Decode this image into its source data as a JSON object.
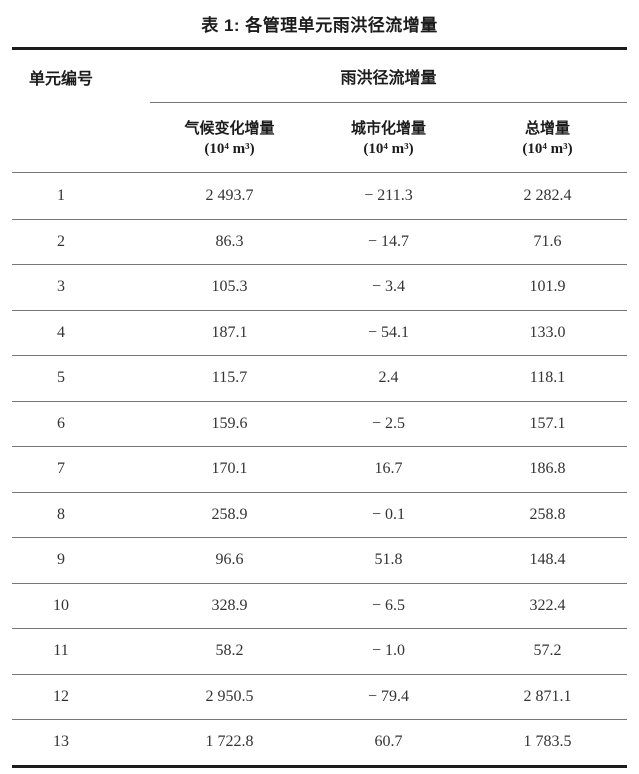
{
  "title": "表 1: 各管理单元雨洪径流增量",
  "table": {
    "col1_header": "单元编号",
    "group_header": "雨洪径流增量",
    "sub_headers": [
      {
        "name": "气候变化增量",
        "unit": "(10⁴ m³)"
      },
      {
        "name": "城市化增量",
        "unit": "(10⁴ m³)"
      },
      {
        "name": "总增量",
        "unit": "(10⁴ m³)"
      }
    ],
    "rows": [
      {
        "unit_no": "1",
        "climate": "2 493.7",
        "urbanization": "− 211.3",
        "total": "2 282.4"
      },
      {
        "unit_no": "2",
        "climate": "86.3",
        "urbanization": "− 14.7",
        "total": "71.6"
      },
      {
        "unit_no": "3",
        "climate": "105.3",
        "urbanization": "− 3.4",
        "total": "101.9"
      },
      {
        "unit_no": "4",
        "climate": "187.1",
        "urbanization": "− 54.1",
        "total": "133.0"
      },
      {
        "unit_no": "5",
        "climate": "115.7",
        "urbanization": "2.4",
        "total": "118.1"
      },
      {
        "unit_no": "6",
        "climate": "159.6",
        "urbanization": "− 2.5",
        "total": "157.1"
      },
      {
        "unit_no": "7",
        "climate": "170.1",
        "urbanization": "16.7",
        "total": "186.8"
      },
      {
        "unit_no": "8",
        "climate": "258.9",
        "urbanization": "− 0.1",
        "total": "258.8"
      },
      {
        "unit_no": "9",
        "climate": "96.6",
        "urbanization": "51.8",
        "total": "148.4"
      },
      {
        "unit_no": "10",
        "climate": "328.9",
        "urbanization": "− 6.5",
        "total": "322.4"
      },
      {
        "unit_no": "11",
        "climate": "58.2",
        "urbanization": "− 1.0",
        "total": "57.2"
      },
      {
        "unit_no": "12",
        "climate": "2 950.5",
        "urbanization": "− 79.4",
        "total": "2 871.1"
      },
      {
        "unit_no": "13",
        "climate": "1 722.8",
        "urbanization": "60.7",
        "total": "1 783.5"
      }
    ]
  },
  "colors": {
    "border_strong": "#1c1c1c",
    "border_light": "#777777",
    "text": "#333333",
    "background": "#ffffff"
  }
}
